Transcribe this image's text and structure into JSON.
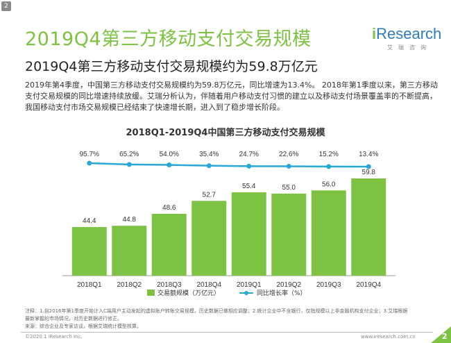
{
  "page": {
    "badge": "2",
    "title": "2019Q4第三方移动支付交易规模",
    "subtitle": "2019Q4第三方移动支付交易规模约为59.8万亿元",
    "body_lines": [
      "2019年第4季度，中国第三方移动支付交易规模约为59.8万亿元，同比增速为13.4%。 2018年第1季度以来，第三方移动",
      "支付交易规模的同比增速持续放缓。艾瑞分析认为，伴随着用户移动支付习惯的建立以及移动支付场景覆盖率的不断提高，",
      "我国移动支付市场交易规模已经结束了快速增长期，进入到了稳步增长阶段。"
    ],
    "footnote_lines": [
      "注释：1.自2016年第1季度开始计入C端用户主动发起的虚拟账户转账交易规模，历史数据已做相应调整；2.统计企业中不含银行，仅指规模以上非金融机构支付企业；3.艾瑞根据",
      "最新掌握的市场情况，对历史数据进行修正。",
      "来源：综合企业及专家访谈，根据艾瑞统计模型核算。"
    ],
    "copyright": "©2020.1 iResearch Inc.",
    "website": "www.iresearch.com.cn",
    "page_number": "2"
  },
  "logo": {
    "word_prefix": "i",
    "word_rest": "Research",
    "sub": "艾瑞咨询"
  },
  "colors": {
    "accent_green": "#7dc242",
    "logo_blue": "#2e7bbf",
    "line_blue": "#29a8d8"
  },
  "chart_data": {
    "type": "bar",
    "title": "2018Q1-2019Q4中国第三方移动支付交易规模",
    "categories": [
      "2018Q1",
      "2018Q2",
      "2018Q3",
      "2018Q4",
      "2019Q1",
      "2019Q2",
      "2019Q3",
      "2019Q4"
    ],
    "series": [
      {
        "name": "交易额规模（万亿元）",
        "type": "bar",
        "values": [
          44.4,
          44.8,
          48.6,
          52.7,
          55.4,
          55.0,
          56.0,
          59.8
        ],
        "labels": [
          "44.4",
          "44.8",
          "48.6",
          "52.7",
          "55.4",
          "55.0",
          "56.0",
          "59.8"
        ]
      },
      {
        "name": "同比增长率（%）",
        "type": "line",
        "values": [
          95.7,
          65.2,
          54.0,
          35.4,
          24.7,
          22.6,
          15.2,
          13.4
        ],
        "labels": [
          "95.7%",
          "65.2%",
          "54.0%",
          "35.4%",
          "24.7%",
          "22.6%",
          "15.2%",
          "13.4%"
        ]
      }
    ],
    "legend_position": "bottom",
    "grid": false
  }
}
